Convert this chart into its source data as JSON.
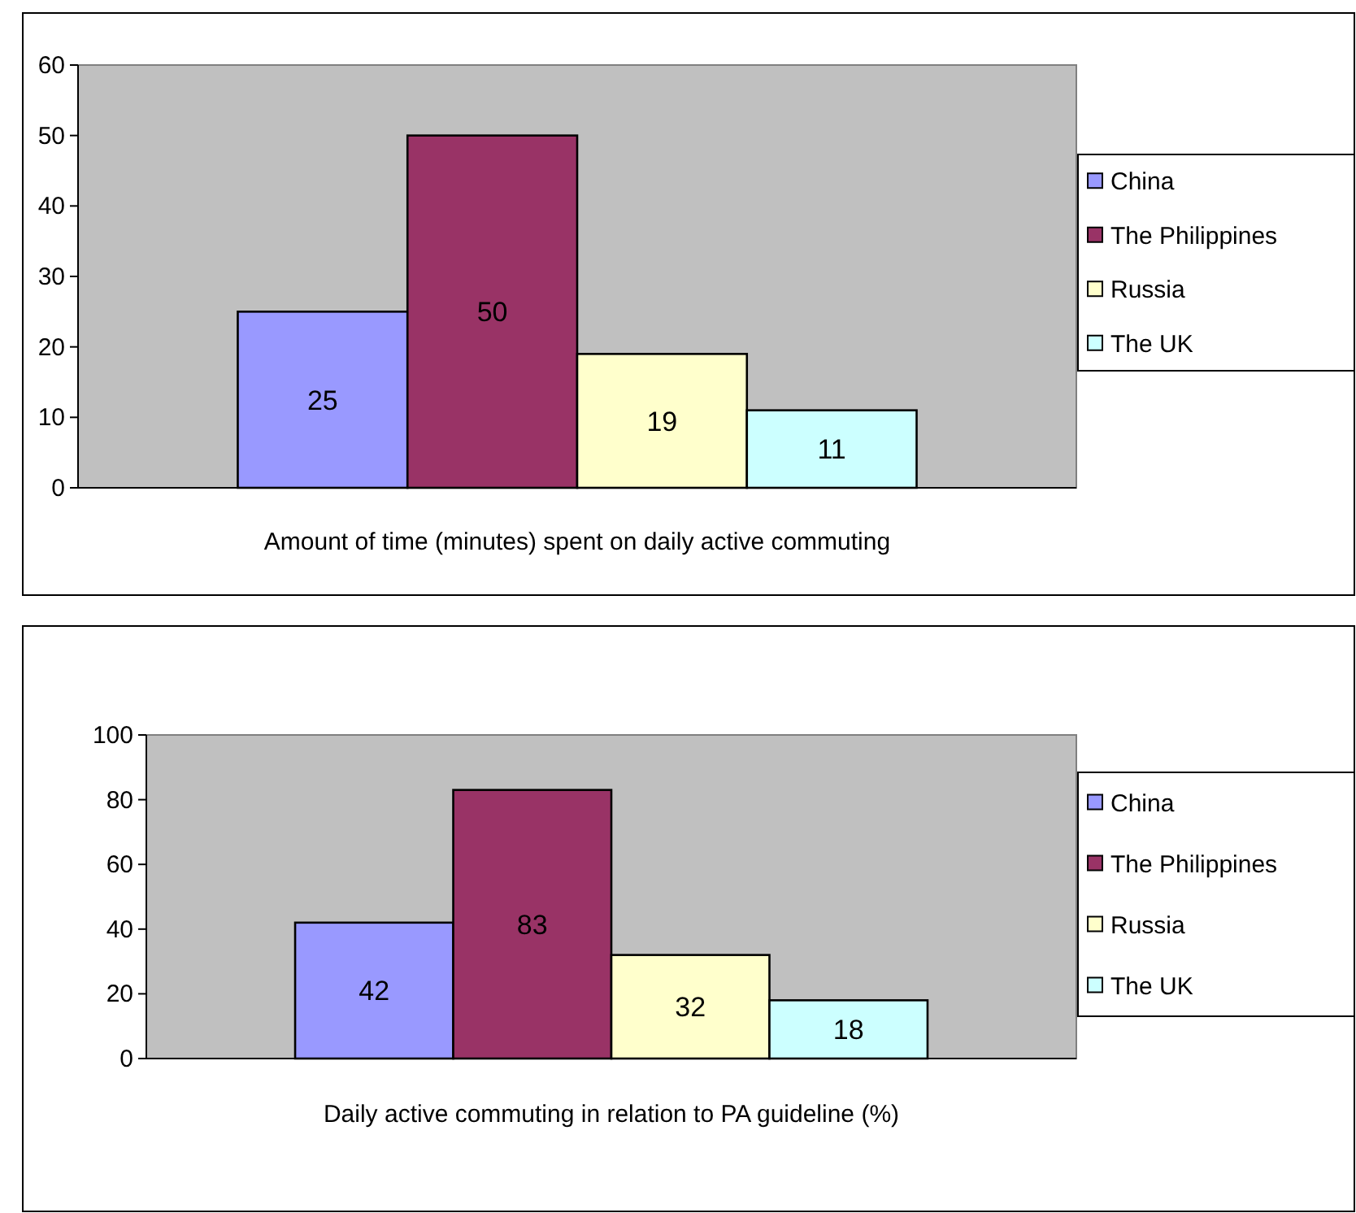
{
  "chart_data": [
    {
      "type": "bar",
      "xlabel": "Amount of time (minutes) spent on daily active commuting",
      "categories": [
        null
      ],
      "series": [
        {
          "name": "China",
          "color": "#9999ff",
          "values": [
            25
          ]
        },
        {
          "name": "The Philippines",
          "color": "#993366",
          "values": [
            50
          ]
        },
        {
          "name": "Russia",
          "color": "#ffffcc",
          "values": [
            19
          ]
        },
        {
          "name": "The UK",
          "color": "#ccffff",
          "values": [
            11
          ]
        }
      ],
      "ylim": [
        0,
        60
      ],
      "yticks": [
        0,
        10,
        20,
        30,
        40,
        50,
        60
      ],
      "data_labels": true,
      "legend": "right"
    },
    {
      "type": "bar",
      "xlabel": "Daily active commuting in relation to PA guideline (%)",
      "categories": [
        null
      ],
      "series": [
        {
          "name": "China",
          "color": "#9999ff",
          "values": [
            42
          ]
        },
        {
          "name": "The Philippines",
          "color": "#993366",
          "values": [
            83
          ]
        },
        {
          "name": "Russia",
          "color": "#ffffcc",
          "values": [
            32
          ]
        },
        {
          "name": "The UK",
          "color": "#ccffff",
          "values": [
            18
          ]
        }
      ],
      "ylim": [
        0,
        100
      ],
      "yticks": [
        0,
        20,
        40,
        60,
        80,
        100
      ],
      "data_labels": true,
      "legend": "right"
    }
  ]
}
